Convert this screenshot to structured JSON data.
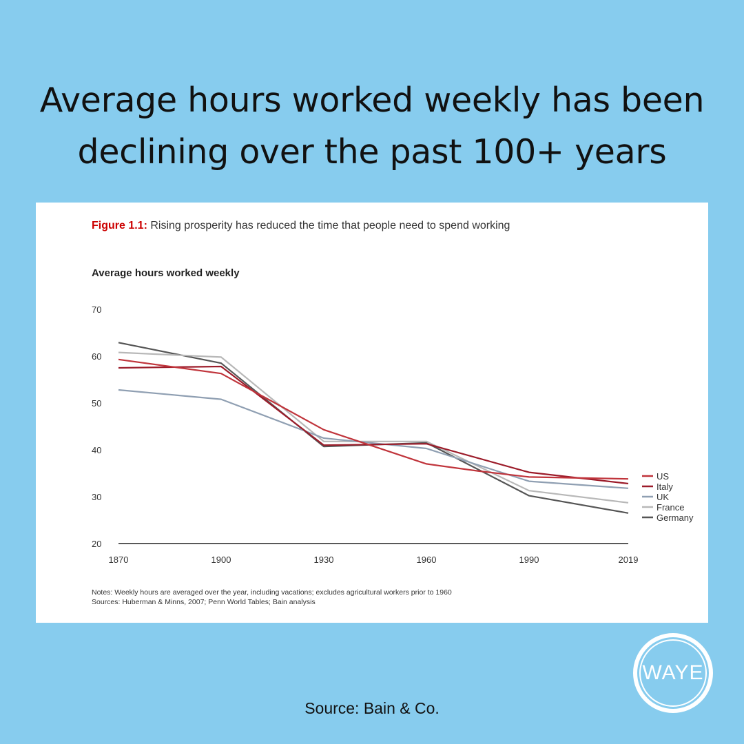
{
  "headline": {
    "line1": "Average hours worked weekly has been",
    "line2": "declining over the past 100+ years"
  },
  "figure": {
    "number": "Figure 1.1:",
    "caption": " Rising prosperity has reduced the time that people need to spend working"
  },
  "notes": "Notes: Weekly hours are averaged over the year, including vacations; excludes agricultural workers prior to 1960",
  "sources": "Sources: Huberman & Minns, 2007; Penn World Tables; Bain analysis",
  "source_credit": "Source: Bain & Co.",
  "logo": {
    "text": "WAYE",
    "icon": "waye-logo"
  },
  "colors": {
    "background": "#87ccee",
    "US": "#c0343b",
    "Italy": "#9c1c2a",
    "UK": "#8f9fb2",
    "France": "#b8b8b8",
    "Germany": "#555555"
  },
  "chart_data": {
    "type": "line",
    "title": "Average hours worked weekly",
    "xlabel": "",
    "ylabel": "",
    "x": [
      1870,
      1900,
      1930,
      1960,
      1975,
      1990,
      2019
    ],
    "x_ticks": [
      "1870",
      "1900",
      "1930",
      "1960",
      "1990",
      "2019"
    ],
    "y_ticks": [
      "70",
      "60",
      "50",
      "40",
      "30",
      "20"
    ],
    "ylim": [
      20,
      70
    ],
    "legend_position": "right",
    "series": [
      {
        "name": "US",
        "x": [
          1870,
          1900,
          1930,
          1960,
          1975,
          1990,
          2019
        ],
        "values": [
          59.3,
          56.3,
          44.3,
          37.0,
          35.5,
          34.2,
          33.8
        ]
      },
      {
        "name": "Italy",
        "x": [
          1870,
          1900,
          1930,
          1960,
          1990,
          2019
        ],
        "values": [
          57.5,
          57.8,
          41.0,
          41.3,
          35.2,
          32.8
        ]
      },
      {
        "name": "UK",
        "x": [
          1870,
          1900,
          1930,
          1960,
          1990,
          2019
        ],
        "values": [
          52.8,
          50.8,
          42.5,
          40.3,
          33.3,
          31.8
        ]
      },
      {
        "name": "France",
        "x": [
          1870,
          1900,
          1930,
          1960,
          1990,
          2019
        ],
        "values": [
          60.8,
          59.8,
          41.8,
          41.8,
          31.3,
          28.7
        ]
      },
      {
        "name": "Germany",
        "x": [
          1870,
          1900,
          1930,
          1960,
          1990,
          2019
        ],
        "values": [
          62.9,
          58.5,
          40.7,
          41.5,
          30.2,
          26.5
        ]
      }
    ]
  }
}
